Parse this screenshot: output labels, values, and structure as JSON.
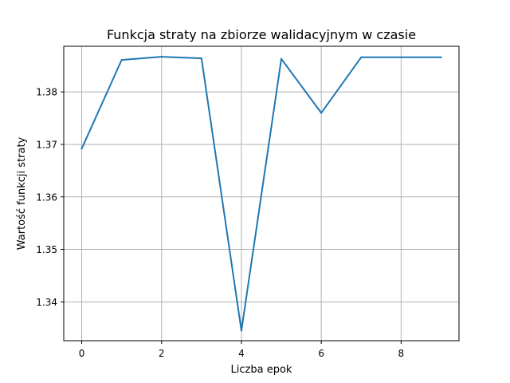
{
  "chart_data": {
    "type": "line",
    "title": "Funkcja straty na zbiorze walidacyjnym w czasie",
    "xlabel": "Liczba epok",
    "ylabel": "Wartość funkcji straty",
    "x": [
      0,
      1,
      2,
      3,
      4,
      5,
      6,
      7,
      8,
      9
    ],
    "series": [
      {
        "values": [
          1.3692,
          1.3861,
          1.3867,
          1.3864,
          1.3345,
          1.3863,
          1.376,
          1.3866,
          1.3866,
          1.3866
        ],
        "color": "#1f77b4"
      }
    ],
    "xlim": [
      -0.45,
      9.45
    ],
    "ylim": [
      1.3326,
      1.3887
    ],
    "xticks": [
      0,
      2,
      4,
      6,
      8
    ],
    "yticks": [
      1.34,
      1.35,
      1.36,
      1.37,
      1.38
    ],
    "xtick_labels": [
      "0",
      "2",
      "4",
      "6",
      "8"
    ],
    "ytick_labels": [
      "1.34",
      "1.35",
      "1.36",
      "1.37",
      "1.38"
    ],
    "grid": true
  }
}
